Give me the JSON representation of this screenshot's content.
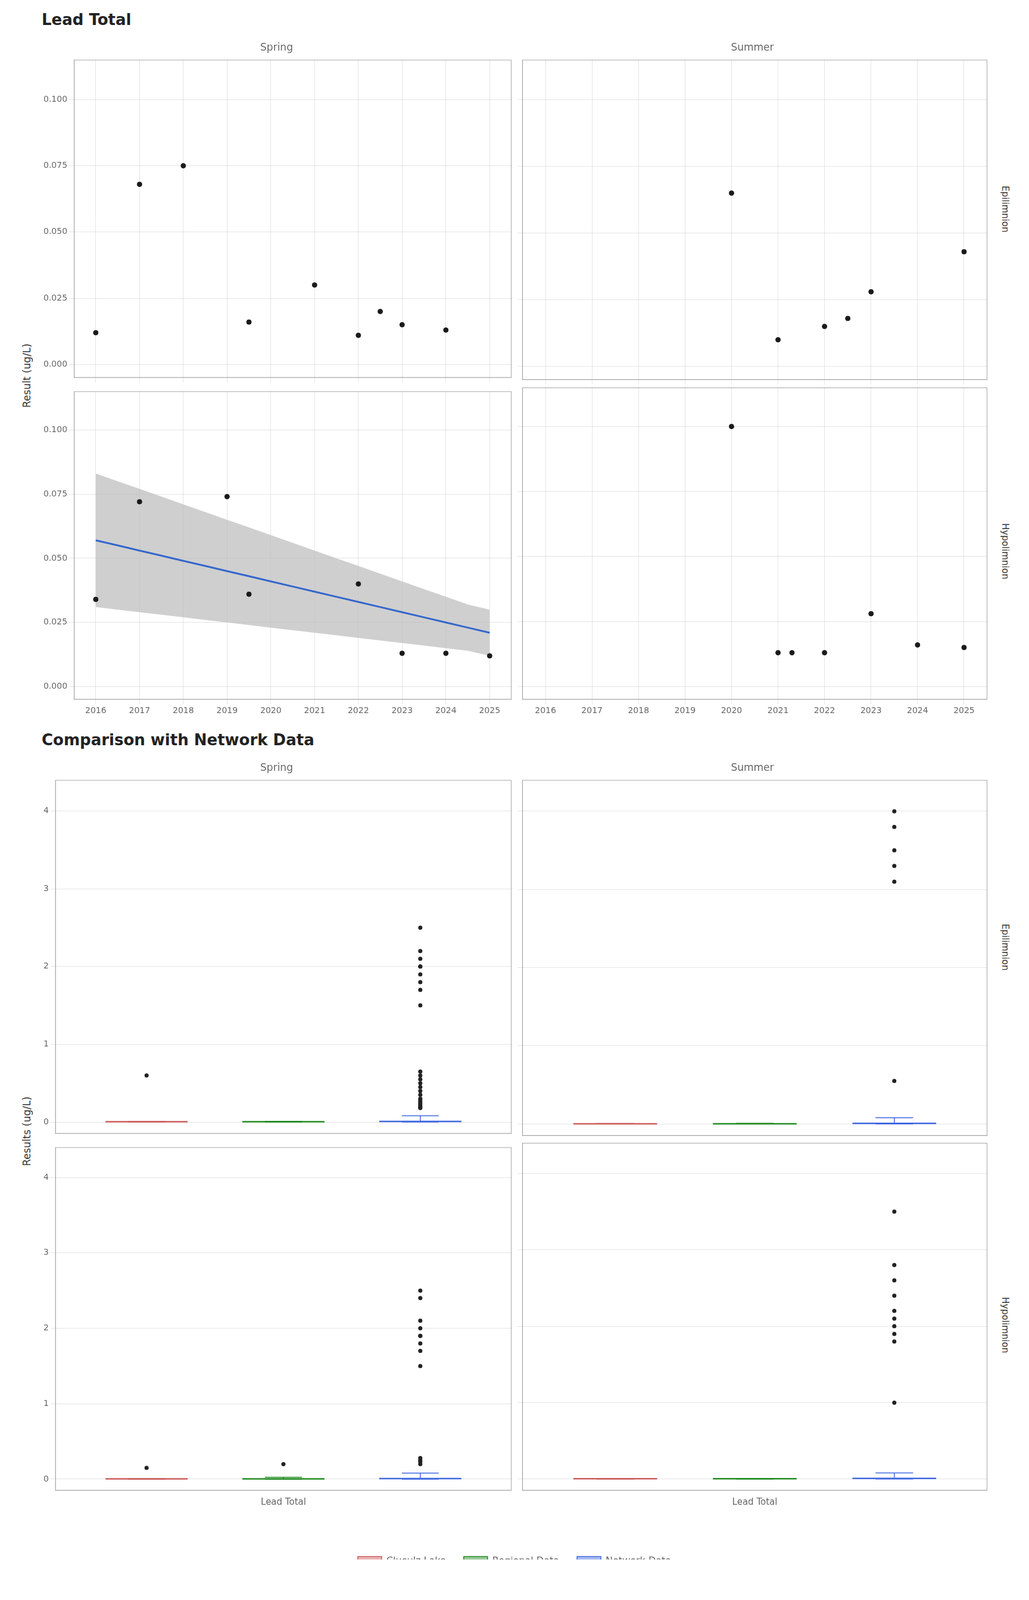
{
  "chart_data": [
    {
      "type": "scatter",
      "title": "Lead Total",
      "ylabel": "Result (ug/L)",
      "xlim": [
        2015.5,
        2025.5
      ],
      "xticks": [
        2016,
        2017,
        2018,
        2019,
        2020,
        2021,
        2022,
        2023,
        2024,
        2025
      ],
      "ylim": [
        -0.005,
        0.115
      ],
      "yticks": [
        {
          "value": 0,
          "label": "0.000"
        },
        0.025,
        {
          "value": 0.05,
          "label": "0.050"
        },
        0.075,
        {
          "value": 0.1,
          "label": "0.100"
        }
      ],
      "grid": true,
      "column_titles": [
        "Spring",
        "Summer"
      ],
      "row_labels": [
        "Epilimnion",
        "Hypolimnion"
      ],
      "panels": [
        {
          "series": [
            {
              "type": "scatter",
              "color": "#1a1a1a",
              "x": [
                2016,
                2017,
                2018,
                2019.5,
                2021,
                2022,
                2022.5,
                2023,
                2024
              ],
              "values": [
                0.012,
                0.068,
                0.075,
                0.016,
                0.03,
                0.011,
                0.02,
                0.015,
                0.013
              ]
            }
          ]
        },
        {
          "series": [
            {
              "type": "scatter",
              "color": "#1a1a1a",
              "x": [
                2020,
                2021,
                2022,
                2022.5,
                2023,
                2025
              ],
              "values": [
                0.065,
                0.01,
                0.015,
                0.018,
                0.028,
                0.043
              ]
            }
          ]
        },
        {
          "series": [
            {
              "type": "area",
              "color": "#bbbbbb",
              "x": [
                2016.0,
                2016.5,
                2017.0,
                2017.5,
                2018.0,
                2018.5,
                2019.0,
                2019.5,
                2020.0,
                2020.5,
                2021.0,
                2021.5,
                2022.0,
                2022.5,
                2023.0,
                2023.5,
                2024.0,
                2024.5,
                2025.0
              ],
              "lower": [
                0.031,
                0.03,
                0.029,
                0.028,
                0.027,
                0.026,
                0.025,
                0.024,
                0.023,
                0.022,
                0.021,
                0.02,
                0.019,
                0.018,
                0.017,
                0.016,
                0.015,
                0.014,
                0.012
              ],
              "upper": [
                0.083,
                0.08,
                0.077,
                0.074,
                0.071,
                0.068,
                0.065,
                0.062,
                0.059,
                0.056,
                0.053,
                0.05,
                0.047,
                0.044,
                0.041,
                0.038,
                0.035,
                0.032,
                0.03
              ]
            },
            {
              "type": "line",
              "color": "#3366CC",
              "x": [
                2016.0,
                2016.5,
                2017.0,
                2017.5,
                2018.0,
                2018.5,
                2019.0,
                2019.5,
                2020.0,
                2020.5,
                2021.0,
                2021.5,
                2022.0,
                2022.5,
                2023.0,
                2023.5,
                2024.0,
                2024.5,
                2025.0
              ],
              "values": [
                0.057,
                0.055,
                0.053,
                0.051,
                0.049,
                0.047,
                0.045,
                0.043,
                0.041,
                0.039,
                0.037,
                0.035,
                0.033,
                0.031,
                0.029,
                0.027,
                0.025,
                0.023,
                0.021
              ]
            },
            {
              "type": "scatter",
              "color": "#1a1a1a",
              "x": [
                2016,
                2017,
                2019,
                2019.5,
                2022,
                2023,
                2024,
                2025
              ],
              "values": [
                0.034,
                0.072,
                0.074,
                0.036,
                0.04,
                0.013,
                0.013,
                0.012
              ]
            }
          ]
        },
        {
          "series": [
            {
              "type": "scatter",
              "color": "#1a1a1a",
              "x": [
                2020,
                2021,
                2021.3,
                2022,
                2023,
                2024,
                2025
              ],
              "values": [
                0.1,
                0.013,
                0.013,
                0.013,
                0.028,
                0.016,
                0.015
              ]
            }
          ]
        }
      ]
    },
    {
      "type": "box",
      "title": "Comparison with Network Data",
      "ylabel": "Results (ug/L)",
      "categories": [
        "Lead Total"
      ],
      "ylim": [
        -0.15,
        4.4
      ],
      "yticks": [
        0,
        1,
        2,
        3,
        4
      ],
      "grid": "y",
      "legend": "bottom",
      "column_titles": [
        "Spring",
        "Summer"
      ],
      "row_labels": [
        "Epilimnion",
        "Hypolimnion"
      ],
      "series": [
        {
          "name": "Cluculz Lake",
          "color": "#CD5C5C"
        },
        {
          "name": "Regional Data",
          "color": "#228B22"
        },
        {
          "name": "Network Data",
          "color": "#4169E1"
        }
      ],
      "panels": [
        {
          "boxes": [
            {
              "median": 0.003,
              "q1": 0.002,
              "q3": 0.004,
              "whisker_low": 0.0,
              "whisker_high": 0.006,
              "outliers": [
                0.6
              ]
            },
            {
              "median": 0.003,
              "q1": 0.002,
              "q3": 0.004,
              "whisker_low": 0.0,
              "whisker_high": 0.008,
              "outliers": []
            },
            {
              "median": 0.008,
              "q1": 0.004,
              "q3": 0.016,
              "whisker_low": 0.0,
              "whisker_high": 0.08,
              "outliers": [
                0.18,
                0.19,
                0.2,
                0.22,
                0.24,
                0.26,
                0.28,
                0.3,
                0.35,
                0.4,
                0.45,
                0.5,
                0.55,
                0.6,
                0.65,
                1.5,
                1.7,
                1.8,
                1.9,
                2.0,
                2.0,
                2.1,
                2.2,
                2.5
              ]
            }
          ]
        },
        {
          "boxes": [
            {
              "median": 0.003,
              "q1": 0.002,
              "q3": 0.004,
              "whisker_low": 0.0,
              "whisker_high": 0.006,
              "outliers": []
            },
            {
              "median": 0.003,
              "q1": 0.002,
              "q3": 0.004,
              "whisker_low": 0.0,
              "whisker_high": 0.008,
              "outliers": []
            },
            {
              "median": 0.008,
              "q1": 0.004,
              "q3": 0.016,
              "whisker_low": 0.0,
              "whisker_high": 0.08,
              "outliers": [
                0.55,
                3.1,
                3.3,
                3.5,
                3.8,
                4.0
              ]
            }
          ]
        },
        {
          "boxes": [
            {
              "median": 0.003,
              "q1": 0.002,
              "q3": 0.004,
              "whisker_low": 0.0,
              "whisker_high": 0.006,
              "outliers": [
                0.15
              ]
            },
            {
              "median": 0.003,
              "q1": 0.002,
              "q3": 0.004,
              "whisker_low": 0.0,
              "whisker_high": 0.025,
              "outliers": [
                0.2
              ]
            },
            {
              "median": 0.008,
              "q1": 0.004,
              "q3": 0.016,
              "whisker_low": 0.0,
              "whisker_high": 0.08,
              "outliers": [
                0.2,
                0.23,
                0.25,
                0.28,
                1.5,
                1.7,
                1.8,
                1.9,
                1.9,
                2.0,
                2.1,
                2.4,
                2.5
              ]
            }
          ]
        },
        {
          "boxes": [
            {
              "median": 0.003,
              "q1": 0.002,
              "q3": 0.004,
              "whisker_low": 0.0,
              "whisker_high": 0.006,
              "outliers": []
            },
            {
              "median": 0.003,
              "q1": 0.002,
              "q3": 0.004,
              "whisker_low": 0.0,
              "whisker_high": 0.008,
              "outliers": []
            },
            {
              "median": 0.008,
              "q1": 0.004,
              "q3": 0.016,
              "whisker_low": 0.0,
              "whisker_high": 0.08,
              "outliers": [
                1.0,
                1.8,
                1.9,
                2.0,
                2.1,
                2.2,
                2.4,
                2.6,
                2.8,
                3.5
              ]
            }
          ]
        }
      ]
    }
  ]
}
